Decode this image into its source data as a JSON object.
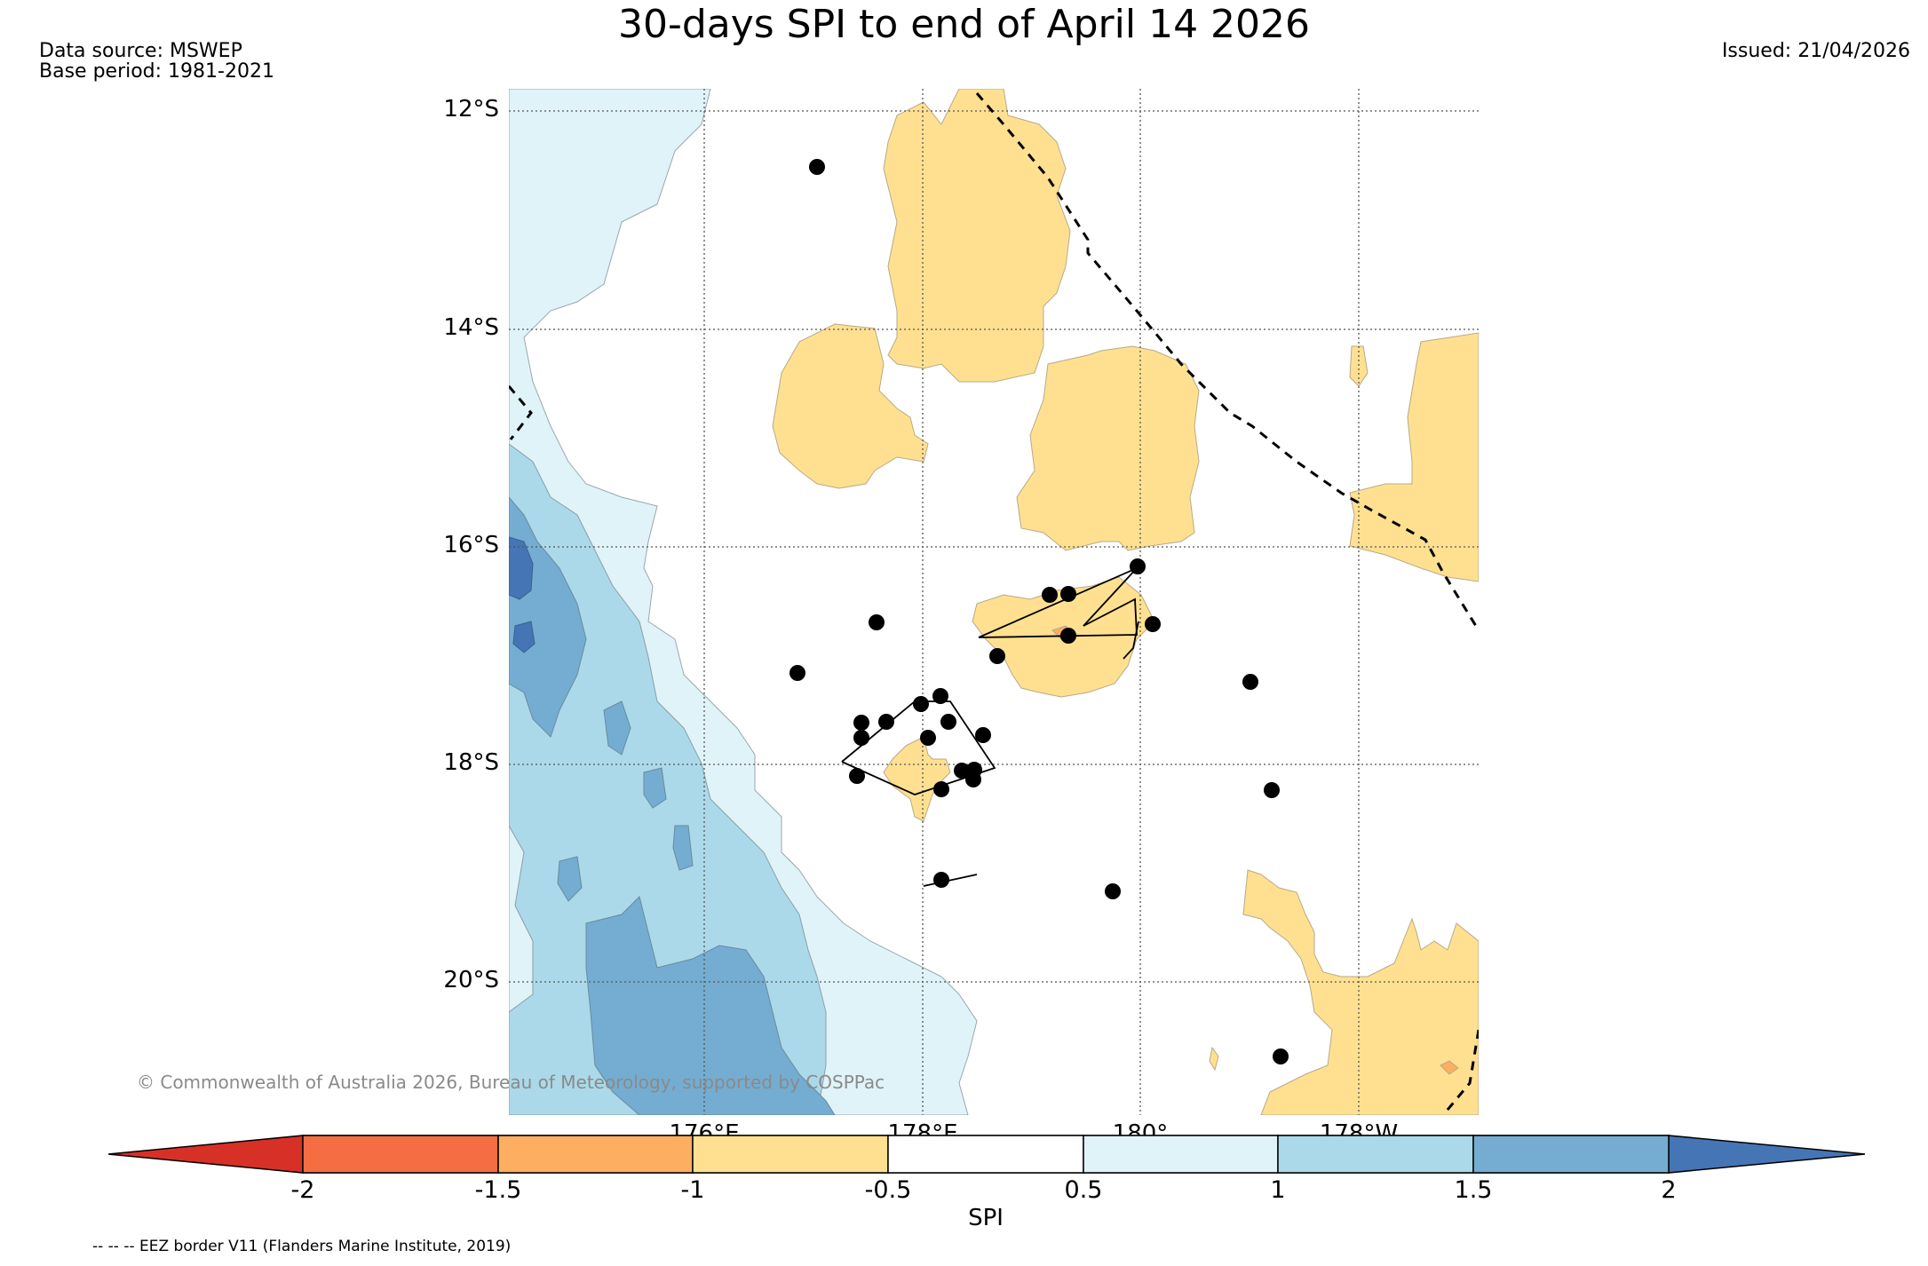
{
  "title": "30-days SPI to end of April 14 2026",
  "data_source": "Data source: MSWEP",
  "base_period": "Base period: 1981-2021",
  "issued": "Issued: 21/04/2026",
  "map": {
    "lat_labels": [
      "12°S",
      "14°S",
      "16°S",
      "18°S",
      "20°S"
    ],
    "lon_labels": [
      "176°E",
      "178°E",
      "180°",
      "178°W"
    ],
    "copyright": "© Commonwealth of Australia 2026, Bureau of Meteorology, supported by COSPPac",
    "colors": {
      "wet_light": "#e0f3f8",
      "wet_mid": "#abd9e9",
      "wet_strong": "#74add1",
      "wet_extreme": "#4575b4",
      "dry_light": "#fee090",
      "dry_mid": "#fdae61",
      "dry_strong": "#f46d43",
      "dry_extreme": "#d73027"
    }
  },
  "colorbar": {
    "label": "SPI",
    "ticks": [
      "-2",
      "-1.5",
      "-1",
      "-0.5",
      "0.5",
      "1",
      "1.5",
      "2"
    ],
    "colors": [
      "#d73027",
      "#f46d43",
      "#fdae61",
      "#fee090",
      "#ffffff",
      "#e0f3f8",
      "#abd9e9",
      "#74add1",
      "#4575b4"
    ]
  },
  "footer": "-- -- -- EEZ border V11 (Flanders Marine Institute, 2019)"
}
